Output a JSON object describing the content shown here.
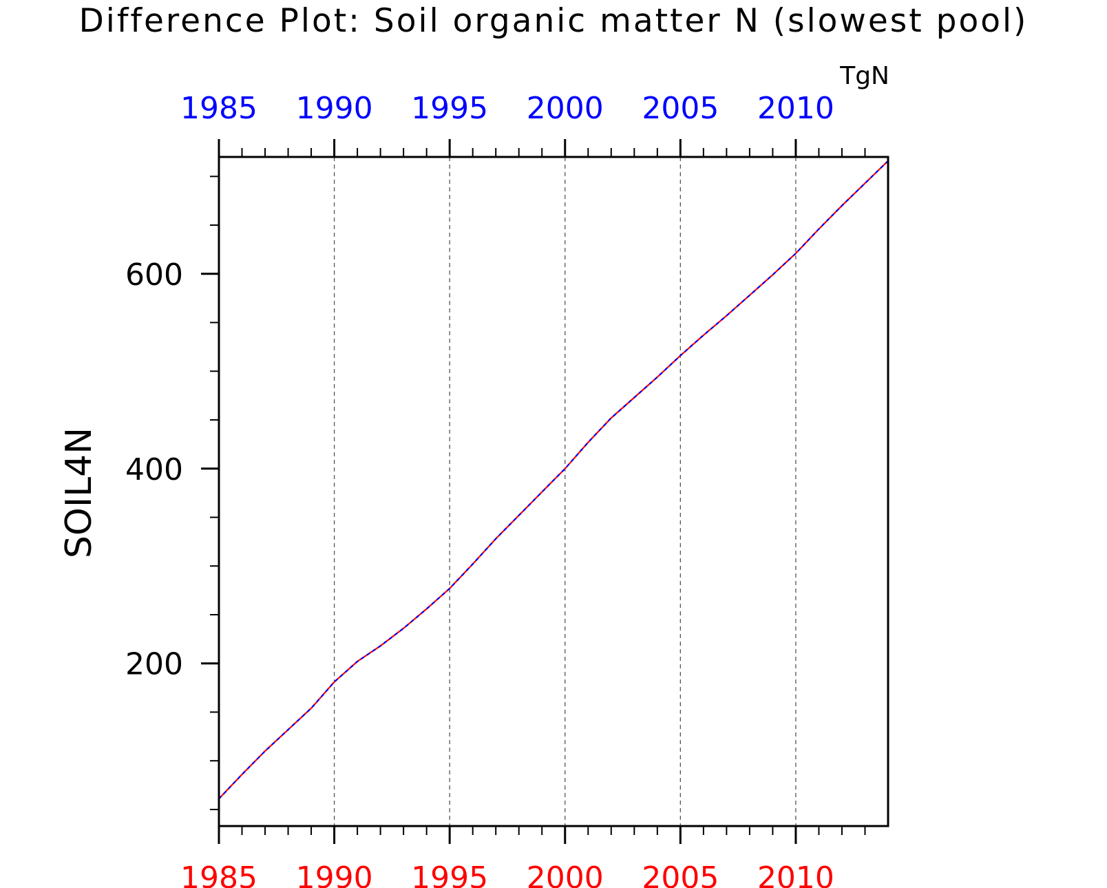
{
  "chart_data": {
    "type": "line",
    "title": "Difference Plot: Soil organic matter N (slowest pool)",
    "units": "TgN",
    "ylabel": "SOIL4N",
    "xlim": [
      1985,
      2014
    ],
    "ylim": [
      33,
      720
    ],
    "x_ticks": [
      1985,
      1990,
      1995,
      2000,
      2005,
      2010
    ],
    "x_ticks_top": [
      "1985",
      "1990",
      "1995",
      "2000",
      "2005",
      "2010"
    ],
    "x_ticks_bottom": [
      "1985",
      "1990",
      "1995",
      "2000",
      "2005",
      "2010"
    ],
    "y_ticks": [
      "200",
      "400",
      "600"
    ],
    "grid": "vertical-dashed",
    "colors": {
      "bottom_axis": "#ff0000",
      "top_axis": "#0000ff",
      "line_a": "#ff0000",
      "line_b": "#0000ff",
      "grid": "#555555"
    },
    "series": [
      {
        "color": "#ff0000",
        "x": [
          1985,
          1986,
          1987,
          1988,
          1989,
          1990,
          1991,
          1992,
          1993,
          1994,
          1995,
          1996,
          1997,
          1998,
          1999,
          2000,
          2001,
          2002,
          2003,
          2004,
          2005,
          2006,
          2007,
          2008,
          2009,
          2010,
          2011,
          2012,
          2013,
          2014
        ],
        "values": [
          61,
          86,
          110,
          132,
          154,
          181,
          202,
          218,
          236,
          256,
          277,
          302,
          328,
          352,
          376,
          400,
          427,
          452,
          473,
          494,
          516,
          537,
          557,
          578,
          599,
          621,
          646,
          670,
          693,
          716
        ]
      },
      {
        "color": "#0000ff",
        "x": [
          1985,
          1986,
          1987,
          1988,
          1989,
          1990,
          1991,
          1992,
          1993,
          1994,
          1995,
          1996,
          1997,
          1998,
          1999,
          2000,
          2001,
          2002,
          2003,
          2004,
          2005,
          2006,
          2007,
          2008,
          2009,
          2010,
          2011,
          2012,
          2013,
          2014
        ],
        "values": [
          61,
          86,
          110,
          132,
          154,
          181,
          202,
          218,
          236,
          256,
          277,
          302,
          328,
          352,
          376,
          400,
          427,
          452,
          473,
          494,
          516,
          537,
          557,
          578,
          599,
          621,
          646,
          670,
          693,
          716
        ]
      }
    ]
  }
}
